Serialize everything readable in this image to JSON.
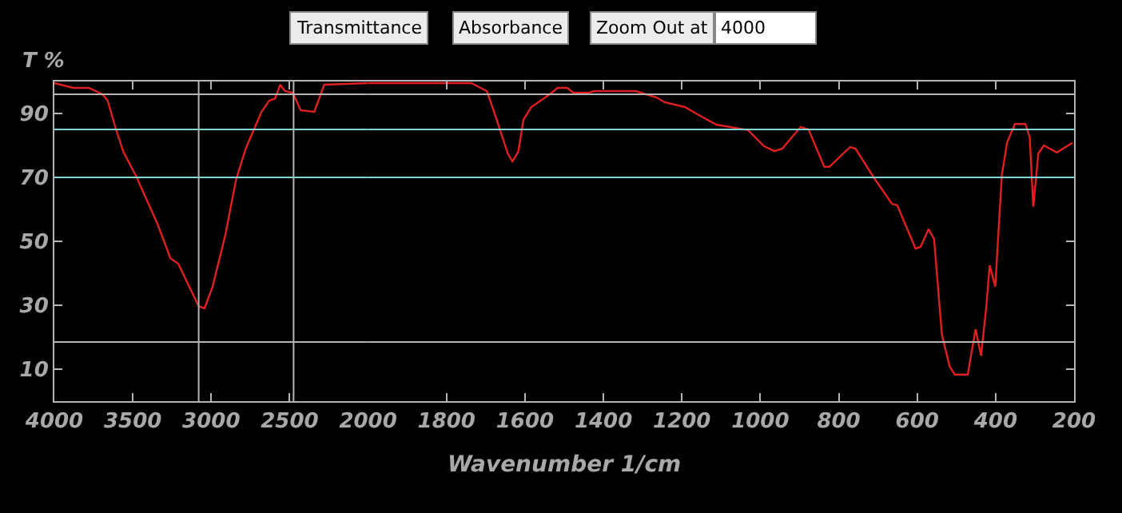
{
  "chart_data": [
    {
      "type": "line",
      "ylabel": "T %",
      "annotations": [
        "Transmittance",
        "Absorbance",
        "Zoom Out at",
        "4000"
      ],
      "xlim": [
        4000,
        2000
      ],
      "xticks": [
        4000,
        3500,
        3000,
        2500,
        2000
      ],
      "ylim": [
        0,
        100
      ],
      "yticks": [
        10,
        30,
        50,
        70,
        90
      ],
      "grid": false,
      "tick_labels": "xy",
      "marker": "none",
      "line_style": "solid",
      "ref_lines": [
        {
          "axis": "y",
          "value": 96,
          "color": "#b4b4b4"
        },
        {
          "axis": "y",
          "value": 85,
          "color": "#7fd6d6"
        },
        {
          "axis": "y",
          "value": 70,
          "color": "#7fd6d6"
        },
        {
          "axis": "y",
          "value": 18.5,
          "color": "#b4b4b4"
        },
        {
          "axis": "x",
          "value": 3080,
          "color": "#b4b4b4"
        },
        {
          "axis": "x",
          "value": 2475,
          "color": "#b4b4b4"
        }
      ],
      "series": [
        {
          "color": "#e02020",
          "x": [
            4000,
            3880,
            3780,
            3693,
            3660,
            3610,
            3560,
            3480,
            3343,
            3260,
            3210,
            3080,
            3043,
            2993,
            2910,
            2843,
            2780,
            2680,
            2630,
            2593,
            2560,
            2530,
            2480,
            2430,
            2343,
            2280,
            2000
          ],
          "values": [
            99.5,
            98,
            98,
            96,
            94,
            85.5,
            78,
            70.5,
            55.5,
            44.7,
            43,
            29.7,
            29,
            35.5,
            52,
            69,
            79,
            90.5,
            94,
            94.7,
            99,
            97,
            96.5,
            91,
            90.5,
            99,
            99.5
          ]
        }
      ]
    },
    {
      "type": "line",
      "xlabel": "Wavenumber 1/cm",
      "xlim": [
        2000,
        200
      ],
      "xticks": [
        1800,
        1600,
        1400,
        1200,
        1000,
        800,
        600,
        400,
        200
      ],
      "ylim": [
        0,
        100
      ],
      "yticks": [
        {
          "value": 10,
          "label": null
        },
        {
          "value": 30,
          "label": null
        },
        {
          "value": 50,
          "label": null
        },
        {
          "value": 70,
          "label": null
        },
        {
          "value": 90,
          "label": null
        }
      ],
      "grid": false,
      "tick_labels": "x",
      "marker": "none",
      "line_style": "solid",
      "ref_lines": [
        {
          "axis": "y",
          "value": 96,
          "color": "#b4b4b4"
        },
        {
          "axis": "y",
          "value": 85,
          "color": "#7fd6d6"
        },
        {
          "axis": "y",
          "value": 70,
          "color": "#7fd6d6"
        },
        {
          "axis": "y",
          "value": 18.5,
          "color": "#b4b4b4"
        }
      ],
      "series": [
        {
          "color": "#e02020",
          "x": [
            2000,
            1737,
            1697,
            1672,
            1644,
            1632,
            1617,
            1604,
            1584,
            1537,
            1517,
            1492,
            1477,
            1437,
            1424,
            1317,
            1264,
            1244,
            1192,
            1164,
            1112,
            1031,
            991,
            964,
            944,
            897,
            877,
            837,
            824,
            771,
            757,
            711,
            664,
            651,
            604,
            591,
            571,
            557,
            537,
            517,
            504,
            471,
            451,
            437,
            424,
            415,
            401,
            384,
            371,
            351,
            324,
            313,
            304,
            291,
            277,
            244,
            204
          ],
          "values": [
            99.5,
            99.5,
            97,
            88,
            77.5,
            75,
            78,
            88,
            92,
            96,
            98,
            98,
            96.5,
            96.5,
            97,
            97,
            95,
            93.5,
            92,
            90,
            86.5,
            84.8,
            79.8,
            78.2,
            79,
            85.8,
            85,
            73.3,
            73.3,
            79.5,
            79,
            70,
            61.7,
            61.3,
            47.7,
            48.3,
            53.8,
            50.8,
            20.8,
            10.8,
            8.3,
            8.3,
            22.5,
            14.2,
            29.2,
            42.5,
            35.8,
            70.8,
            80.8,
            86.7,
            86.7,
            82.5,
            60.8,
            77.5,
            80,
            77.8,
            80.8
          ]
        }
      ]
    }
  ]
}
